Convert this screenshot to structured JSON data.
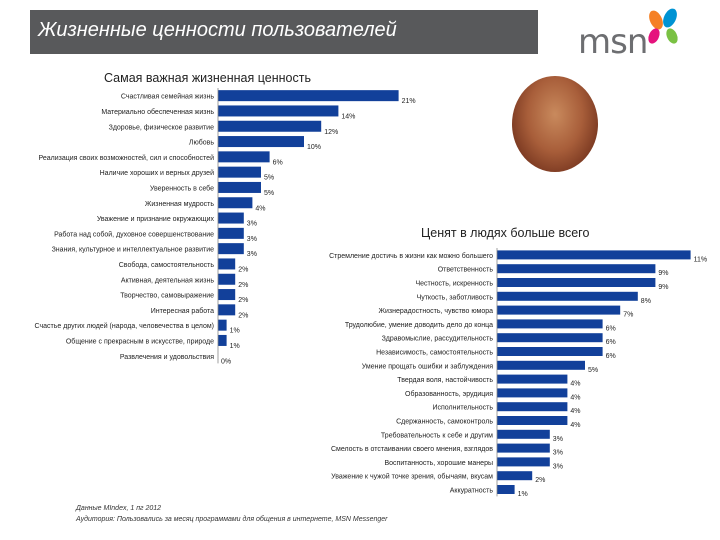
{
  "header": {
    "title": "Жизненные ценности пользователей",
    "logo_text": "msn",
    "colors": {
      "bar_bg": "#58595b",
      "bar": "#12409a",
      "logo_grey": "#6d6e71"
    }
  },
  "chart_data": [
    {
      "type": "bar",
      "orientation": "horizontal",
      "title": "Самая важная жизненная ценность",
      "unit": "%",
      "max": 21,
      "categories": [
        "Счастливая семейная жизнь",
        "Материально обеспеченная жизнь",
        "Здоровье, физическое развитие",
        "Любовь",
        "Реализация своих возможностей, сил и способностей",
        "Наличие хороших и верных друзей",
        "Уверенность в себе",
        "Жизненная мудрость",
        "Уважение и признание окружающих",
        "Работа над собой, духовное совершенствование",
        "Знания, культурное и интеллектуальное развитие",
        "Свобода, самостоятельность",
        "Активная, деятельная жизнь",
        "Творчество, самовыражение",
        "Интересная работа",
        "Счастье других людей (народа, человечества в целом)",
        "Общение с прекрасным в искусстве, природе",
        "Развлечения и удовольствия"
      ],
      "values": [
        21,
        14,
        12,
        10,
        6,
        5,
        5,
        4,
        3,
        3,
        3,
        2,
        2,
        2,
        2,
        1,
        1,
        0
      ]
    },
    {
      "type": "bar",
      "orientation": "horizontal",
      "title": "Ценят в людях больше всего",
      "unit": "%",
      "max": 11,
      "categories": [
        "Стремление достичь в жизни как можно большего",
        "Ответственность",
        "Честность, искренность",
        "Чуткость, заботливость",
        "Жизнерадостность, чувство юмора",
        "Трудолюбие, умение доводить дело до конца",
        "Здравомыслие, рассудительность",
        "Независимость, самостоятельность",
        "Умение прощать ошибки и заблуждения",
        "Твердая воля, настойчивость",
        "Образованность, эрудиция",
        "Исполнительность",
        "Сдержанность, самоконтроль",
        "Требовательность к себе и другим",
        "Смелость в отстаивании своего мнения, взглядов",
        "Воспитанность, хорошие манеры",
        "Уважение к чужой точке зрения, обычаям, вкусам",
        "Аккуратность"
      ],
      "values": [
        11,
        9,
        9,
        8,
        7,
        6,
        6,
        6,
        5,
        4,
        4,
        4,
        4,
        3,
        3,
        3,
        2,
        1
      ]
    }
  ],
  "footer": {
    "source": "Данные MIndex, 1 пг 2012",
    "audience": "Аудитория: Пользовались за месяц программами для общения в интернете, MSN Messenger"
  }
}
